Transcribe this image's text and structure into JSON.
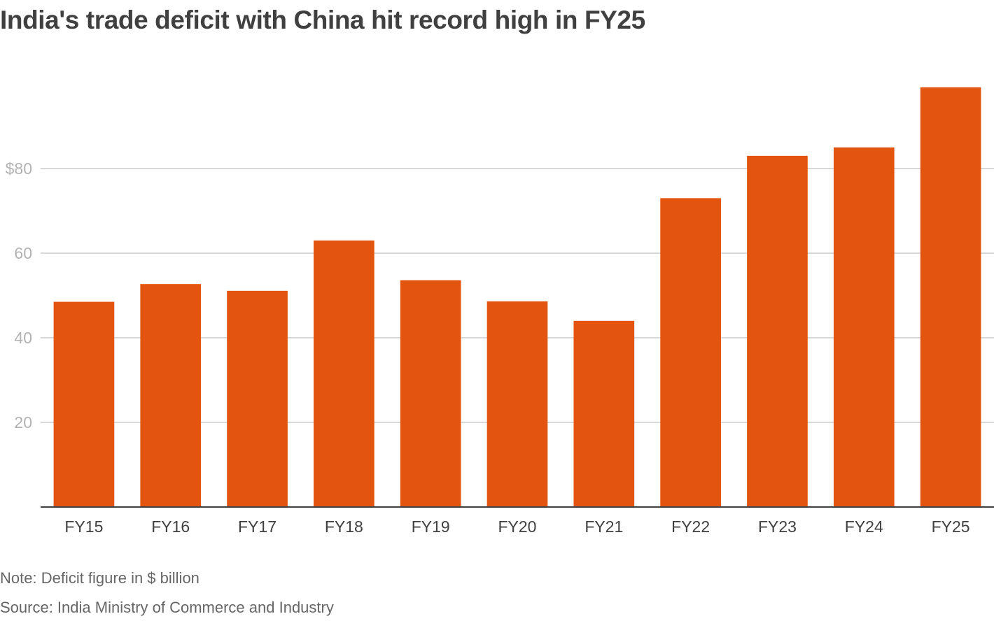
{
  "title": "India's trade deficit with China hit record high in FY25",
  "note": "Note: Deficit figure in $ billion",
  "source": "Source: India Ministry of Commerce and Industry",
  "colors": {
    "bar": "#e3540f",
    "grid": "#cccccc",
    "axis": "#404040",
    "tick": "#b3b3b3",
    "category": "#404040"
  },
  "chart_data": {
    "type": "bar",
    "title": "India's trade deficit with China hit record high in FY25",
    "xlabel": "",
    "ylabel": "",
    "unit": "$ billion",
    "categories": [
      "FY15",
      "FY16",
      "FY17",
      "FY18",
      "FY19",
      "FY20",
      "FY21",
      "FY22",
      "FY23",
      "FY24",
      "FY25"
    ],
    "values": [
      48.5,
      52.7,
      51.1,
      63.0,
      53.6,
      48.6,
      44.0,
      73.0,
      83.0,
      85.0,
      99.2
    ],
    "ylim": [
      0,
      100
    ],
    "yticks": [
      20,
      40,
      60,
      80
    ],
    "ytick_labels": [
      "20",
      "40",
      "60",
      "$80"
    ],
    "grid": true,
    "legend": "none"
  }
}
